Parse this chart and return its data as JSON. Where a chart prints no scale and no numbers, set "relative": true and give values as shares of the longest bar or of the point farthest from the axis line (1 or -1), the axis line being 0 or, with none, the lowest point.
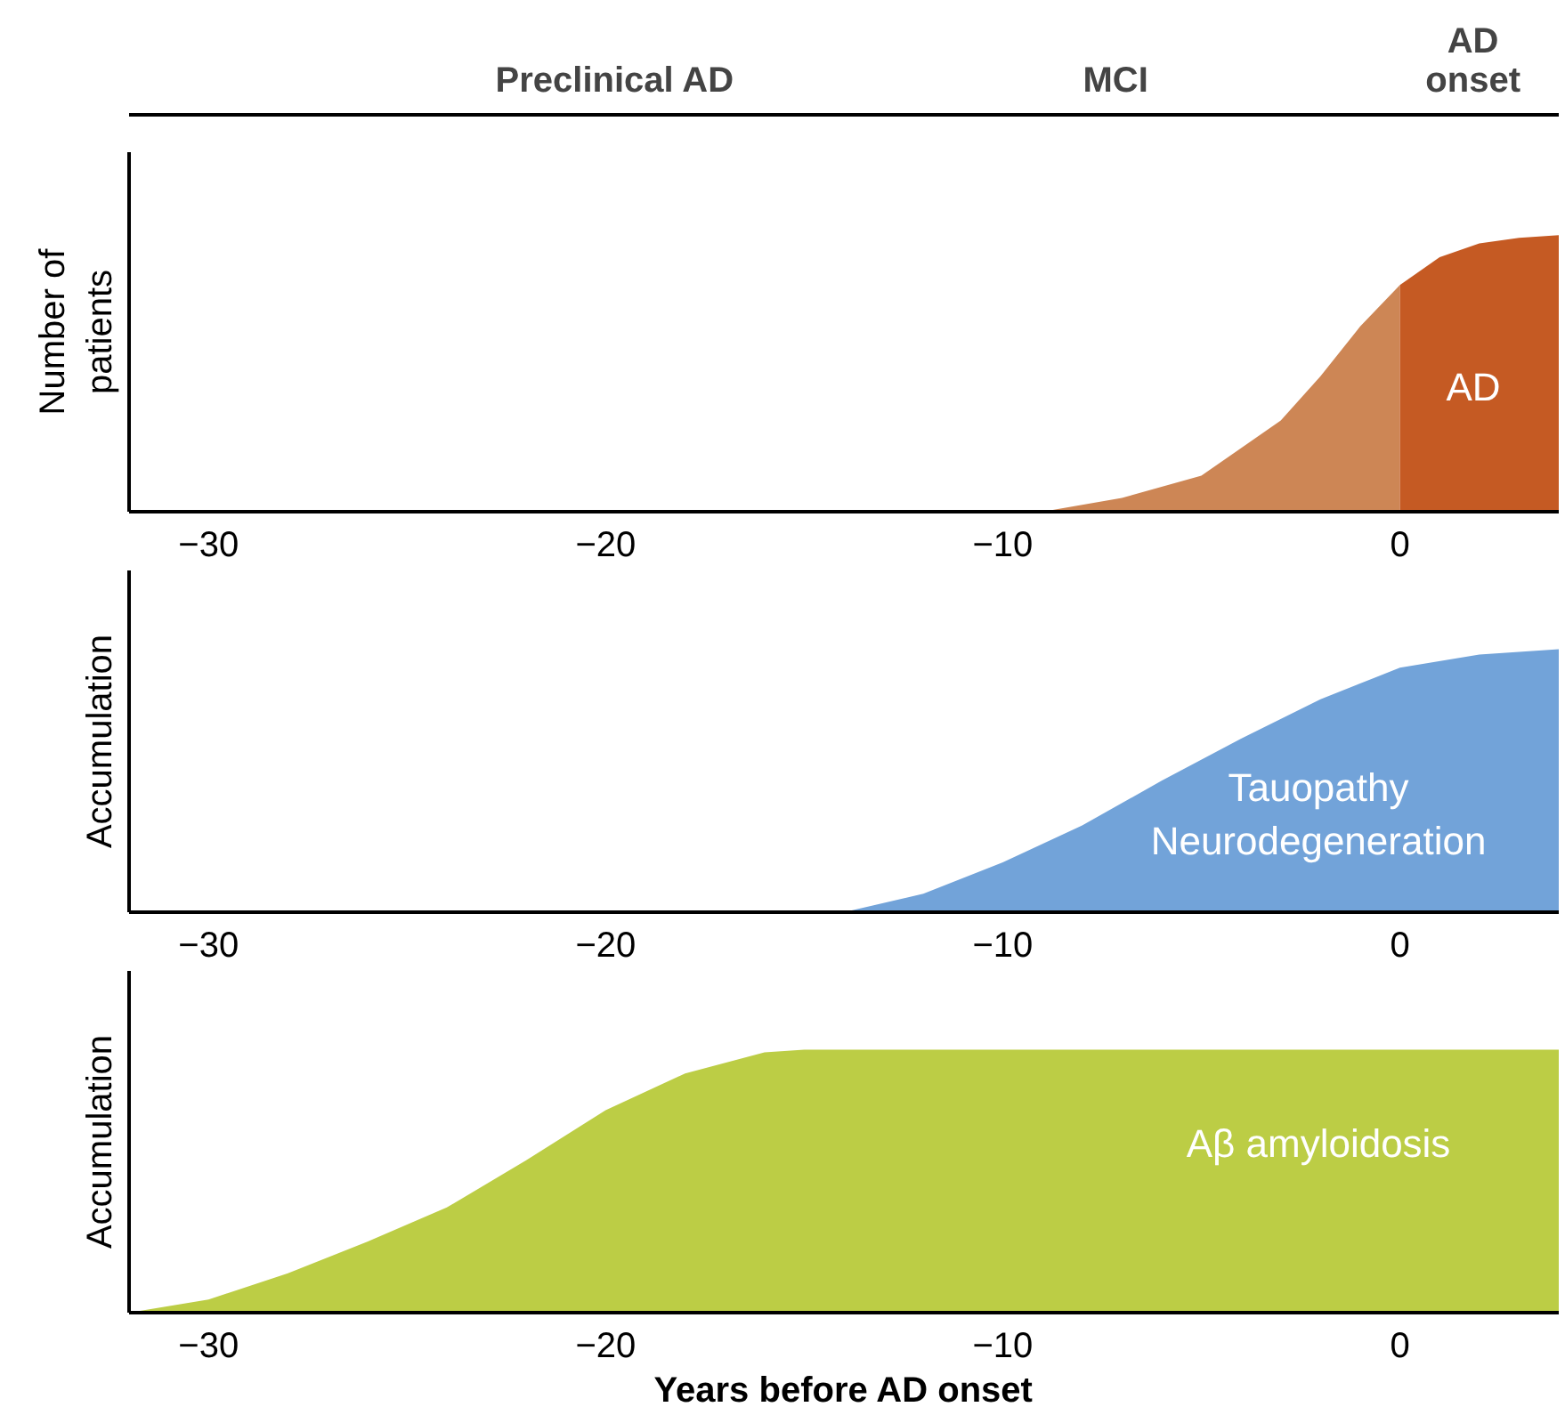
{
  "chart_data": [
    {
      "type": "other",
      "annotations": [
        "Preclinical AD",
        "MCI",
        "AD\nonset"
      ]
    },
    {
      "type": "area",
      "relative": true,
      "ylabel": "Number of\npatients",
      "xlim": [
        -32,
        4
      ],
      "xticks": [
        {
          "value": -30,
          "label": "−30"
        },
        {
          "value": -20,
          "label": "−20"
        },
        {
          "value": -10,
          "label": "−10"
        },
        {
          "value": 0,
          "label": "0"
        }
      ],
      "tick_labels": "x",
      "series": [
        {
          "color": "#cd8655",
          "x": [
            -9,
            -7,
            -5,
            -3,
            -2,
            -1,
            0
          ],
          "values": [
            0,
            0.05,
            0.13,
            0.33,
            0.49,
            0.67,
            0.82
          ]
        },
        {
          "color": "#c55a23",
          "x": [
            0,
            1,
            2,
            3,
            4
          ],
          "values": [
            0.82,
            0.92,
            0.97,
            0.99,
            1
          ]
        }
      ],
      "annotations": [
        "AD"
      ]
    },
    {
      "type": "area",
      "relative": true,
      "ylabel": "Accumulation",
      "xlim": [
        -32,
        4
      ],
      "xticks": [
        {
          "value": -30,
          "label": "−30"
        },
        {
          "value": -20,
          "label": "−20"
        },
        {
          "value": -10,
          "label": "−10"
        },
        {
          "value": 0,
          "label": "0"
        }
      ],
      "tick_labels": "x",
      "series": [
        {
          "color": "#72a3d9",
          "x": [
            -14,
            -12,
            -10,
            -8,
            -6,
            -4,
            -2,
            0,
            2,
            4
          ],
          "values": [
            0,
            0.07,
            0.19,
            0.33,
            0.5,
            0.66,
            0.81,
            0.93,
            0.98,
            1
          ]
        }
      ],
      "annotations": [
        "Tauopathy\nNeurodegeneration"
      ]
    },
    {
      "type": "area",
      "relative": true,
      "ylabel": "Accumulation",
      "xlabel": "Years before AD onset",
      "xlim": [
        -32,
        4
      ],
      "xticks": [
        {
          "value": -30,
          "label": "−30"
        },
        {
          "value": -20,
          "label": "−20"
        },
        {
          "value": -10,
          "label": "−10"
        },
        {
          "value": 0,
          "label": "0"
        }
      ],
      "tick_labels": "x",
      "series": [
        {
          "color": "#bccd45",
          "x": [
            -32,
            -30,
            -28,
            -26,
            -24,
            -22,
            -20,
            -18,
            -16,
            -15,
            4
          ],
          "values": [
            0,
            0.05,
            0.15,
            0.27,
            0.4,
            0.58,
            0.77,
            0.91,
            0.99,
            1,
            1
          ]
        }
      ],
      "annotations": [
        "Aβ amyloidosis"
      ]
    }
  ]
}
